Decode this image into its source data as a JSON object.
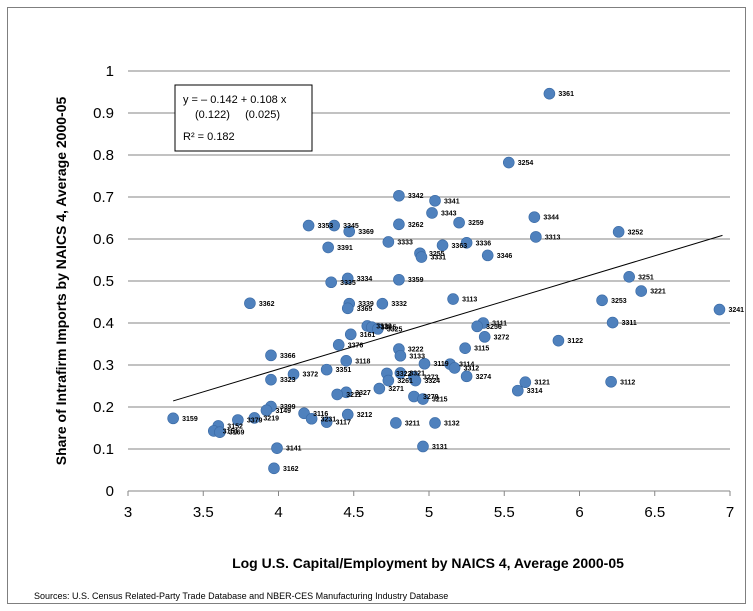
{
  "chart_data": {
    "type": "scatter",
    "title": "",
    "xlabel": "Log U.S. Capital/Employment by NAICS 4, Average 2000-05",
    "ylabel": "Share of Intrafirm Imports by NAICS 4, Average 2000-05",
    "xlim": [
      3,
      7
    ],
    "ylim": [
      0,
      1
    ],
    "xticks": [
      "3",
      "3.5",
      "4",
      "4.5",
      "5",
      "5.5",
      "6",
      "6.5",
      "7"
    ],
    "yticks": [
      "0",
      "0.1",
      "0.2",
      "0.3",
      "0.4",
      "0.5",
      "0.6",
      "0.7",
      "0.8",
      "0.9",
      "1"
    ],
    "grid": "horizontal",
    "legend": "none",
    "marker_color": "#4f81bd",
    "trendline": {
      "intercept": -0.142,
      "slope": 0.108,
      "x_range": [
        3.3,
        6.95
      ]
    },
    "equation_box": {
      "line1": "y = – 0.142  +  0.108 x",
      "line2": "(0.122)     (0.025)",
      "line3": "R² = 0.182"
    },
    "points": [
      {
        "label": "3361",
        "x": 5.8,
        "y": 0.946
      },
      {
        "label": "3254",
        "x": 5.53,
        "y": 0.782
      },
      {
        "label": "3342",
        "x": 4.8,
        "y": 0.703
      },
      {
        "label": "3341",
        "x": 5.04,
        "y": 0.691
      },
      {
        "label": "3343",
        "x": 5.02,
        "y": 0.662
      },
      {
        "label": "3344",
        "x": 5.7,
        "y": 0.652
      },
      {
        "label": "3259",
        "x": 5.2,
        "y": 0.639
      },
      {
        "label": "3262",
        "x": 4.8,
        "y": 0.635
      },
      {
        "label": "3353",
        "x": 4.2,
        "y": 0.632
      },
      {
        "label": "3345",
        "x": 4.37,
        "y": 0.632
      },
      {
        "label": "3252",
        "x": 6.26,
        "y": 0.617
      },
      {
        "label": "3369",
        "x": 4.47,
        "y": 0.618
      },
      {
        "label": "3313",
        "x": 5.71,
        "y": 0.605
      },
      {
        "label": "3333",
        "x": 4.73,
        "y": 0.593
      },
      {
        "label": "3336",
        "x": 5.25,
        "y": 0.591
      },
      {
        "label": "3363",
        "x": 5.09,
        "y": 0.585
      },
      {
        "label": "3391",
        "x": 4.33,
        "y": 0.58
      },
      {
        "label": "3255",
        "x": 4.94,
        "y": 0.566
      },
      {
        "label": "3331",
        "x": 4.95,
        "y": 0.557
      },
      {
        "label": "3346",
        "x": 5.39,
        "y": 0.561
      },
      {
        "label": "3251",
        "x": 6.33,
        "y": 0.51
      },
      {
        "label": "3334",
        "x": 4.46,
        "y": 0.506
      },
      {
        "label": "3359",
        "x": 4.8,
        "y": 0.503
      },
      {
        "label": "3335",
        "x": 4.35,
        "y": 0.497
      },
      {
        "label": "3221",
        "x": 6.41,
        "y": 0.476
      },
      {
        "label": "3113",
        "x": 5.16,
        "y": 0.457
      },
      {
        "label": "3253",
        "x": 6.15,
        "y": 0.454
      },
      {
        "label": "3362",
        "x": 3.81,
        "y": 0.447
      },
      {
        "label": "3339",
        "x": 4.47,
        "y": 0.446
      },
      {
        "label": "3332",
        "x": 4.69,
        "y": 0.446
      },
      {
        "label": "3365",
        "x": 4.46,
        "y": 0.435
      },
      {
        "label": "3241",
        "x": 6.93,
        "y": 0.432
      },
      {
        "label": "3311",
        "x": 6.22,
        "y": 0.401
      },
      {
        "label": "3111",
        "x": 5.36,
        "y": 0.4
      },
      {
        "label": "3329",
        "x": 4.59,
        "y": 0.393
      },
      {
        "label": "3315",
        "x": 4.62,
        "y": 0.39
      },
      {
        "label": "3325",
        "x": 4.66,
        "y": 0.386
      },
      {
        "label": "3256",
        "x": 5.32,
        "y": 0.392
      },
      {
        "label": "3161",
        "x": 4.48,
        "y": 0.373
      },
      {
        "label": "3272",
        "x": 5.37,
        "y": 0.367
      },
      {
        "label": "3122",
        "x": 5.86,
        "y": 0.358
      },
      {
        "label": "3376",
        "x": 4.4,
        "y": 0.348
      },
      {
        "label": "3222",
        "x": 4.8,
        "y": 0.338
      },
      {
        "label": "3115",
        "x": 5.24,
        "y": 0.34
      },
      {
        "label": "3366",
        "x": 3.95,
        "y": 0.323
      },
      {
        "label": "3133",
        "x": 4.81,
        "y": 0.322
      },
      {
        "label": "3118",
        "x": 4.45,
        "y": 0.31
      },
      {
        "label": "3119",
        "x": 4.97,
        "y": 0.303
      },
      {
        "label": "3114",
        "x": 5.14,
        "y": 0.302
      },
      {
        "label": "3312",
        "x": 5.17,
        "y": 0.293
      },
      {
        "label": "3351",
        "x": 4.32,
        "y": 0.289
      },
      {
        "label": "3372",
        "x": 4.1,
        "y": 0.278
      },
      {
        "label": "3322",
        "x": 4.72,
        "y": 0.28
      },
      {
        "label": "3321",
        "x": 4.81,
        "y": 0.281
      },
      {
        "label": "3274",
        "x": 5.25,
        "y": 0.273
      },
      {
        "label": "3273",
        "x": 4.9,
        "y": 0.272
      },
      {
        "label": "3261",
        "x": 4.73,
        "y": 0.263
      },
      {
        "label": "3324",
        "x": 4.91,
        "y": 0.263
      },
      {
        "label": "3323",
        "x": 3.95,
        "y": 0.265
      },
      {
        "label": "3121",
        "x": 5.64,
        "y": 0.259
      },
      {
        "label": "3112",
        "x": 6.21,
        "y": 0.26
      },
      {
        "label": "3271",
        "x": 4.67,
        "y": 0.244
      },
      {
        "label": "3314",
        "x": 5.59,
        "y": 0.239
      },
      {
        "label": "3327",
        "x": 4.45,
        "y": 0.235
      },
      {
        "label": "3211",
        "x": 4.39,
        "y": 0.23
      },
      {
        "label": "3279",
        "x": 4.9,
        "y": 0.225
      },
      {
        "label": "3215",
        "x": 4.96,
        "y": 0.219
      },
      {
        "label": "3399",
        "x": 3.95,
        "y": 0.201
      },
      {
        "label": "3149",
        "x": 3.92,
        "y": 0.192
      },
      {
        "label": "3116",
        "x": 4.17,
        "y": 0.185
      },
      {
        "label": "3212",
        "x": 4.46,
        "y": 0.182
      },
      {
        "label": "3219",
        "x": 3.84,
        "y": 0.174
      },
      {
        "label": "3231",
        "x": 4.22,
        "y": 0.172
      },
      {
        "label": "3159",
        "x": 3.3,
        "y": 0.173
      },
      {
        "label": "3379",
        "x": 3.73,
        "y": 0.169
      },
      {
        "label": "3117",
        "x": 4.32,
        "y": 0.164
      },
      {
        "label": "3211",
        "x": 4.78,
        "y": 0.162
      },
      {
        "label": "3132",
        "x": 5.04,
        "y": 0.162
      },
      {
        "label": "3152",
        "x": 3.6,
        "y": 0.155
      },
      {
        "label": "3151",
        "x": 3.57,
        "y": 0.143
      },
      {
        "label": "3169",
        "x": 3.61,
        "y": 0.14
      },
      {
        "label": "3141",
        "x": 3.99,
        "y": 0.102
      },
      {
        "label": "3131",
        "x": 4.96,
        "y": 0.106
      },
      {
        "label": "3162",
        "x": 3.97,
        "y": 0.054
      }
    ]
  },
  "source_note": "Sources: U.S. Census Related-Party Trade Database and NBER-CES Manufacturing Industry Database"
}
